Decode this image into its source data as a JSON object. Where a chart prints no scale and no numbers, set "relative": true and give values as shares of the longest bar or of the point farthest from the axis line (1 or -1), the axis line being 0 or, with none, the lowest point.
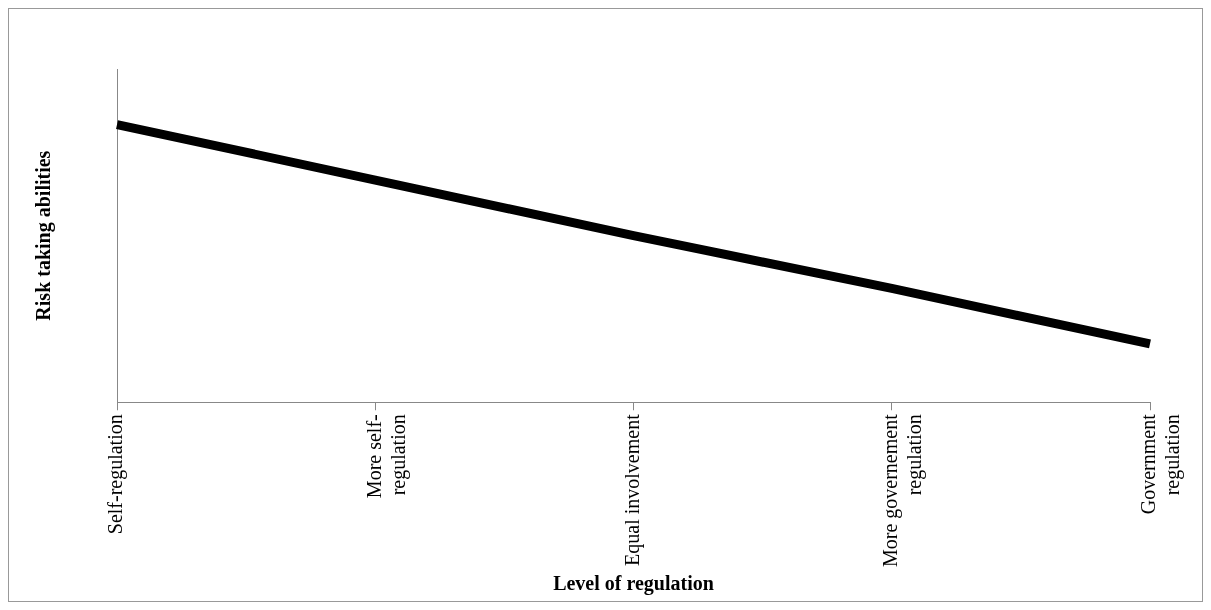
{
  "chart_data": {
    "type": "line",
    "xlabel": "Level of regulation",
    "ylabel": "Risk taking abilities",
    "relative": true,
    "categories": [
      "Self-regulation",
      "More self-regulation",
      "Equal involvement",
      "More governement regulation",
      "Government regulation"
    ],
    "series": [
      {
        "color": "#000000",
        "values": [
          1,
          0.8,
          0.6,
          0.41,
          0.21
        ]
      }
    ],
    "legend": false,
    "grid": false,
    "marker": "none",
    "line_style": "solid"
  }
}
